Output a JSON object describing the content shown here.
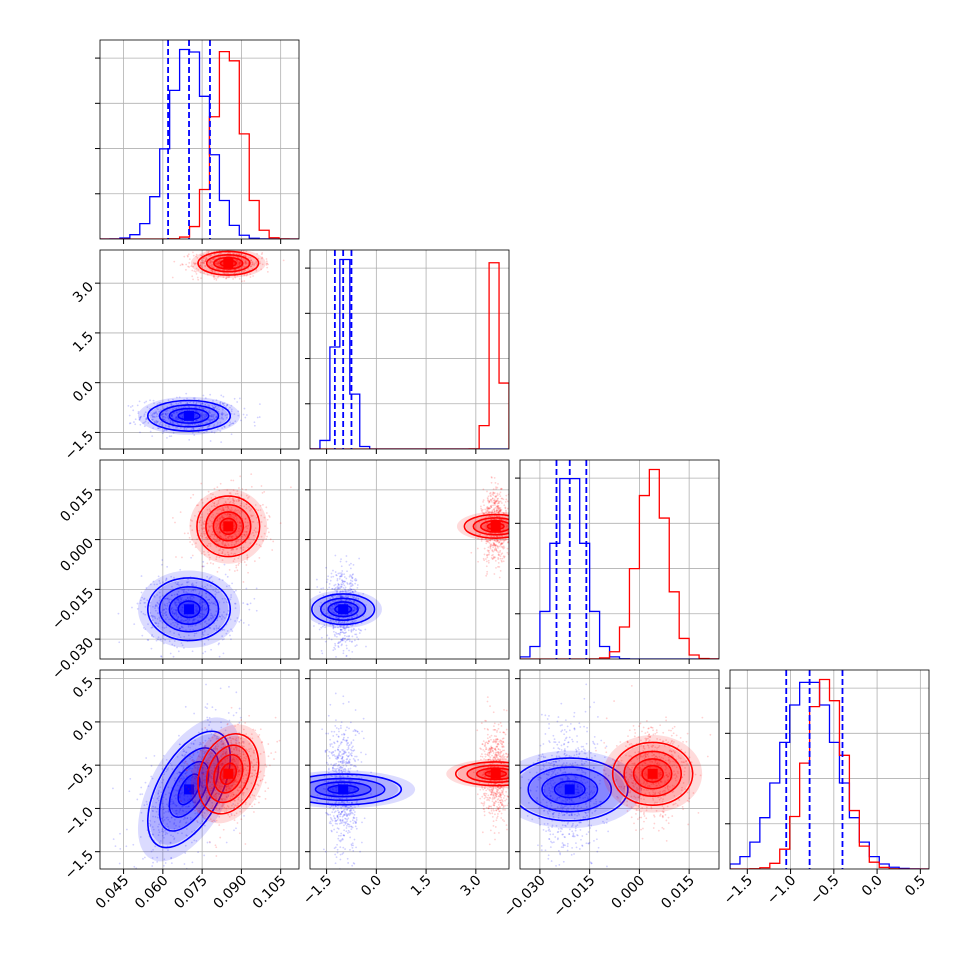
{
  "chart_data": {
    "type": "corner",
    "grid": true,
    "colors": {
      "series_a": "#0000ff",
      "series_b": "#ff0000"
    },
    "parameters": [
      {
        "range": [
          0.036,
          0.112
        ],
        "ticks": [
          0.045,
          0.06,
          0.075,
          0.09,
          0.105
        ],
        "tick_labels": [
          "0.045",
          "0.060",
          "0.075",
          "0.090",
          "0.105"
        ]
      },
      {
        "range": [
          -2.0,
          4.0
        ],
        "ticks": [
          -1.5,
          0.0,
          1.5,
          3.0
        ],
        "tick_labels": [
          "−1.5",
          "0.0",
          "1.5",
          "3.0"
        ]
      },
      {
        "range": [
          -0.036,
          0.024
        ],
        "ticks": [
          -0.03,
          -0.015,
          0.0,
          0.015
        ],
        "tick_labels": [
          "−0.030",
          "−0.015",
          "0.000",
          "0.015"
        ]
      },
      {
        "range": [
          -1.7,
          0.6
        ],
        "ticks": [
          -1.5,
          -1.0,
          -0.5,
          0.0,
          0.5
        ],
        "tick_labels": [
          "−1.5",
          "−1.0",
          "−0.5",
          "0.0",
          "0.5"
        ]
      }
    ],
    "series": [
      {
        "color": "#0000ff",
        "mean": [
          0.07,
          -1.0,
          -0.021,
          -0.78
        ],
        "sd": [
          0.0075,
          0.22,
          0.0045,
          0.32
        ],
        "quantiles_16_50_84": [
          [
            0.062,
            0.07,
            0.078
          ],
          [
            -1.25,
            -1.0,
            -0.75
          ],
          [
            -0.025,
            -0.021,
            -0.016
          ],
          [
            -1.05,
            -0.78,
            -0.4
          ]
        ]
      },
      {
        "color": "#ff0000",
        "mean": [
          0.085,
          3.6,
          0.004,
          -0.6
        ],
        "sd": [
          0.0055,
          0.17,
          0.0045,
          0.22
        ]
      }
    ],
    "correlations": {
      "series_a": {
        "0-3": 0.55
      },
      "series_b": {
        "0-3": 0.25
      }
    }
  }
}
